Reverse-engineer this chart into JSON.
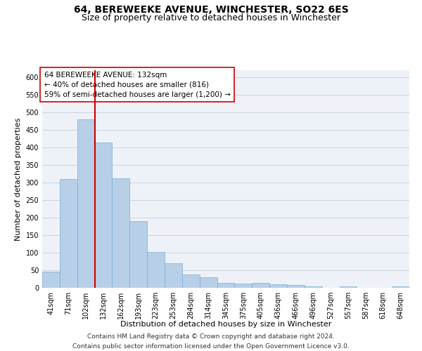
{
  "title": "64, BEREWEEKE AVENUE, WINCHESTER, SO22 6ES",
  "subtitle": "Size of property relative to detached houses in Winchester",
  "xlabel": "Distribution of detached houses by size in Winchester",
  "ylabel": "Number of detached properties",
  "footer_line1": "Contains HM Land Registry data © Crown copyright and database right 2024.",
  "footer_line2": "Contains public sector information licensed under the Open Government Licence v3.0.",
  "categories": [
    "41sqm",
    "71sqm",
    "102sqm",
    "132sqm",
    "162sqm",
    "193sqm",
    "223sqm",
    "253sqm",
    "284sqm",
    "314sqm",
    "345sqm",
    "375sqm",
    "405sqm",
    "436sqm",
    "466sqm",
    "496sqm",
    "527sqm",
    "557sqm",
    "587sqm",
    "618sqm",
    "648sqm"
  ],
  "values": [
    46,
    311,
    480,
    415,
    313,
    190,
    103,
    70,
    38,
    31,
    15,
    12,
    15,
    10,
    8,
    5,
    0,
    5,
    0,
    0,
    5
  ],
  "bar_color": "#b8cfe8",
  "bar_edge_color": "#7aafd4",
  "grid_color": "#c8d4e4",
  "annotation_box_text_line1": "64 BEREWEEKE AVENUE: 132sqm",
  "annotation_box_text_line2": "← 40% of detached houses are smaller (816)",
  "annotation_box_text_line3": "59% of semi-detached houses are larger (1,200) →",
  "vline_x_index": 3,
  "vline_color": "#cc0000",
  "ylim": [
    0,
    620
  ],
  "yticks": [
    0,
    50,
    100,
    150,
    200,
    250,
    300,
    350,
    400,
    450,
    500,
    550,
    600
  ],
  "background_color": "#eef2f8",
  "title_fontsize": 10,
  "subtitle_fontsize": 9,
  "annotation_fontsize": 7.5,
  "axis_label_fontsize": 8,
  "ylabel_fontsize": 8,
  "tick_fontsize": 7,
  "footer_fontsize": 6.5
}
